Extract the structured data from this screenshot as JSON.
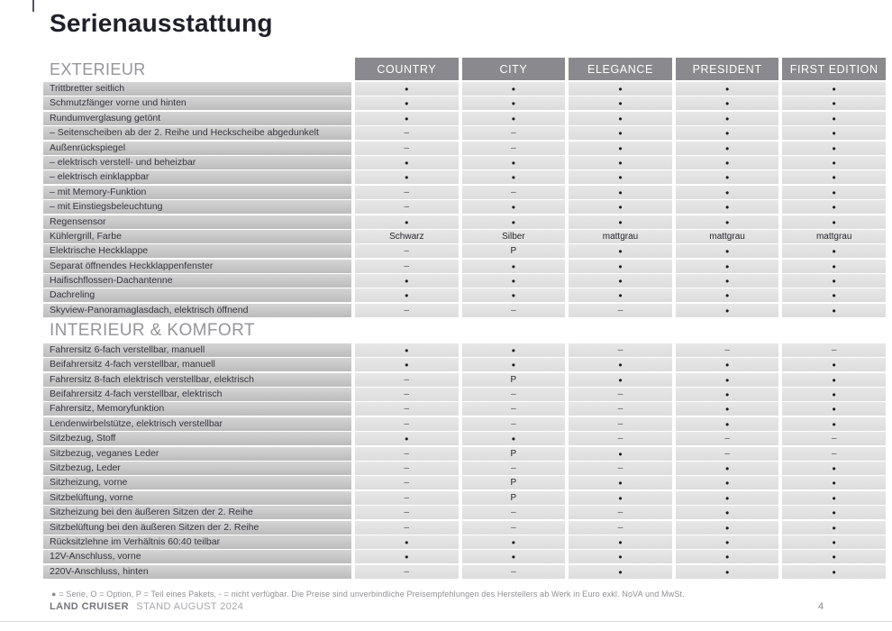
{
  "page": {
    "title": "Serienausstattung",
    "footnote": "● = Serie, O = Option, P = Teil eines Pakets, - = nicht verfügbar. Die Preise sind unverbindliche Preisempfehlungen des Herstellers ab Werk in Euro exkl. NoVA und MwSt.",
    "footer_brand": "LAND CRUISER",
    "footer_status": "STAND AUGUST 2024",
    "page_number": "4"
  },
  "colors": {
    "column_header_bg": "#8a8a8e",
    "label_cell_bg": "#c6c6c6",
    "value_cell_bg": "#e2e2e2",
    "title_text": "#20202a",
    "section_title_text": "#95959b"
  },
  "legend": {
    "serie": "●",
    "option": "O",
    "paket": "P",
    "nicht_verfuegbar": "–"
  },
  "table": {
    "columns": [
      "COUNTRY",
      "CITY",
      "ELEGANCE",
      "PRESIDENT",
      "FIRST EDITION"
    ],
    "sections": [
      {
        "name": "EXTERIEUR",
        "rows": [
          {
            "label": "Trittbretter seitlich",
            "values": [
              "●",
              "●",
              "●",
              "●",
              "●"
            ]
          },
          {
            "label": "Schmutzfänger vorne und hinten",
            "values": [
              "●",
              "●",
              "●",
              "●",
              "●"
            ]
          },
          {
            "label": "Rundumverglasung getönt",
            "values": [
              "●",
              "●",
              "●",
              "●",
              "●"
            ]
          },
          {
            "label": "– Seitenscheiben ab der 2. Reihe und Heckscheibe abgedunkelt",
            "values": [
              "–",
              "–",
              "●",
              "●",
              "●"
            ]
          },
          {
            "label": "Außenrückspiegel",
            "values": [
              "–",
              "–",
              "●",
              "●",
              "●"
            ]
          },
          {
            "label": "– elektrisch verstell- und beheizbar",
            "values": [
              "●",
              "●",
              "●",
              "●",
              "●"
            ]
          },
          {
            "label": "– elektrisch einklappbar",
            "values": [
              "●",
              "●",
              "●",
              "●",
              "●"
            ]
          },
          {
            "label": "– mit Memory-Funktion",
            "values": [
              "–",
              "–",
              "●",
              "●",
              "●"
            ]
          },
          {
            "label": "– mit Einstiegsbeleuchtung",
            "values": [
              "–",
              "●",
              "●",
              "●",
              "●"
            ]
          },
          {
            "label": "Regensensor",
            "values": [
              "●",
              "●",
              "●",
              "●",
              "●"
            ]
          },
          {
            "label": "Kühlergrill, Farbe",
            "values": [
              "Schwarz",
              "Silber",
              "mattgrau",
              "mattgrau",
              "mattgrau"
            ]
          },
          {
            "label": "Elektrische Heckklappe",
            "values": [
              "–",
              "P",
              "●",
              "●",
              "●"
            ]
          },
          {
            "label": "Separat öffnendes Heckklappenfenster",
            "values": [
              "–",
              "●",
              "●",
              "●",
              "●"
            ]
          },
          {
            "label": "Haifischflossen-Dachantenne",
            "values": [
              "●",
              "●",
              "●",
              "●",
              "●"
            ]
          },
          {
            "label": "Dachreling",
            "values": [
              "●",
              "●",
              "●",
              "●",
              "●"
            ]
          },
          {
            "label": "Skyview-Panoramaglasdach, elektrisch öffnend",
            "values": [
              "–",
              "–",
              "–",
              "●",
              "●"
            ]
          }
        ]
      },
      {
        "name": "INTERIEUR & KOMFORT",
        "rows": [
          {
            "label": "Fahrersitz 6-fach verstellbar, manuell",
            "values": [
              "●",
              "●",
              "–",
              "–",
              "–"
            ]
          },
          {
            "label": "Beifahrersitz 4-fach verstellbar, manuell",
            "values": [
              "●",
              "●",
              "●",
              "●",
              "●"
            ]
          },
          {
            "label": "Fahrersitz 8-fach elektrisch verstellbar, elektrisch",
            "values": [
              "–",
              "P",
              "●",
              "●",
              "●"
            ]
          },
          {
            "label": "Beifahrersitz 4-fach verstellbar, elektrisch",
            "values": [
              "–",
              "–",
              "–",
              "●",
              "●"
            ]
          },
          {
            "label": "Fahrersitz, Memoryfunktion",
            "values": [
              "–",
              "–",
              "–",
              "●",
              "●"
            ]
          },
          {
            "label": "Lendenwirbelstütze, elektrisch verstellbar",
            "values": [
              "–",
              "–",
              "–",
              "●",
              "●"
            ]
          },
          {
            "label": "Sitzbezug, Stoff",
            "values": [
              "●",
              "●",
              "–",
              "–",
              "–"
            ]
          },
          {
            "label": "Sitzbezug, veganes Leder",
            "values": [
              "–",
              "P",
              "●",
              "–",
              "–"
            ]
          },
          {
            "label": "Sitzbezug, Leder",
            "values": [
              "–",
              "–",
              "–",
              "●",
              "●"
            ]
          },
          {
            "label": "Sitzheizung, vorne",
            "values": [
              "–",
              "P",
              "●",
              "●",
              "●"
            ]
          },
          {
            "label": "Sitzbelüftung, vorne",
            "values": [
              "–",
              "P",
              "●",
              "●",
              "●"
            ]
          },
          {
            "label": "Sitzheizung bei den äußeren Sitzen der 2. Reihe",
            "values": [
              "–",
              "–",
              "–",
              "●",
              "●"
            ]
          },
          {
            "label": "Sitzbelüftung bei den äußeren Sitzen der 2. Reihe",
            "values": [
              "–",
              "–",
              "–",
              "●",
              "●"
            ]
          },
          {
            "label": "Rücksitzlehne im Verhältnis 60:40 teilbar",
            "values": [
              "●",
              "●",
              "●",
              "●",
              "●"
            ]
          },
          {
            "label": "12V-Anschluss, vorne",
            "values": [
              "●",
              "●",
              "●",
              "●",
              "●"
            ]
          },
          {
            "label": "220V-Anschluss, hinten",
            "values": [
              "–",
              "–",
              "●",
              "●",
              "●"
            ]
          }
        ]
      }
    ]
  }
}
